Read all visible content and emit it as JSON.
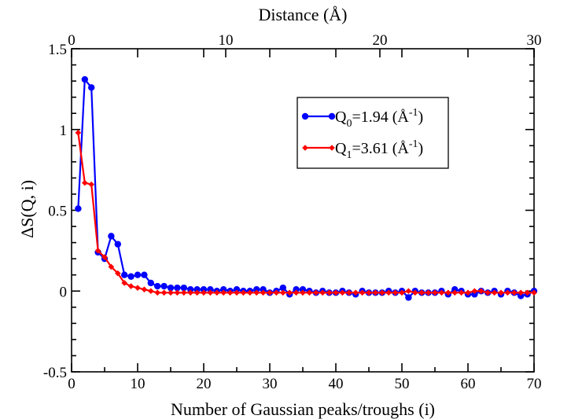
{
  "chart_data": {
    "type": "line",
    "xlabel": "Number of Gaussian peaks/troughs (i)",
    "ylabel": "ΔS(Q, i)",
    "x2label": "Distance (Å)",
    "xlim": [
      0,
      70
    ],
    "ylim": [
      -0.5,
      1.5
    ],
    "x2lim": [
      0,
      30
    ],
    "x_ticks": [
      0,
      10,
      20,
      30,
      40,
      50,
      60,
      70
    ],
    "y_ticks": [
      -0.5,
      0,
      0.5,
      1,
      1.5
    ],
    "y_tick_labels": [
      "-0.5",
      "0",
      "0.5",
      "1",
      "1.5"
    ],
    "x2_ticks": [
      0,
      10,
      20,
      30
    ],
    "grid": false,
    "legend_position": "upper-right",
    "series": [
      {
        "name": "Q0=1.94 (Å-1)",
        "legend": {
          "prefix": "Q",
          "sub": "0",
          "middle": "=1.94 (Å",
          "sup": "-1",
          "suffix": ")"
        },
        "color": "#0000ff",
        "marker": "circle",
        "x": [
          1,
          2,
          3,
          4,
          5,
          6,
          7,
          8,
          9,
          10,
          11,
          12,
          13,
          14,
          15,
          16,
          17,
          18,
          19,
          20,
          21,
          22,
          23,
          24,
          25,
          26,
          27,
          28,
          29,
          30,
          31,
          32,
          33,
          34,
          35,
          36,
          37,
          38,
          39,
          40,
          41,
          42,
          43,
          44,
          45,
          46,
          47,
          48,
          49,
          50,
          51,
          52,
          53,
          54,
          55,
          56,
          57,
          58,
          59,
          60,
          61,
          62,
          63,
          64,
          65,
          66,
          67,
          68,
          69,
          70
        ],
        "y": [
          0.51,
          1.31,
          1.26,
          0.24,
          0.2,
          0.34,
          0.29,
          0.1,
          0.09,
          0.1,
          0.1,
          0.05,
          0.03,
          0.03,
          0.02,
          0.02,
          0.02,
          0.01,
          0.01,
          0.01,
          0.01,
          0.0,
          0.01,
          0.0,
          0.01,
          0.0,
          0.0,
          0.01,
          0.01,
          -0.01,
          0.0,
          0.02,
          -0.02,
          0.01,
          0.01,
          0.0,
          -0.01,
          0.0,
          -0.01,
          -0.01,
          0.0,
          -0.01,
          -0.02,
          0.0,
          -0.01,
          -0.01,
          -0.01,
          0.0,
          -0.01,
          0.0,
          -0.04,
          0.0,
          -0.01,
          -0.01,
          -0.01,
          0.0,
          -0.02,
          0.01,
          0.0,
          -0.02,
          -0.02,
          0.0,
          -0.01,
          0.0,
          -0.02,
          0.0,
          -0.01,
          -0.03,
          -0.02,
          0.0
        ]
      },
      {
        "name": "Q1=3.61 (Å-1)",
        "legend": {
          "prefix": "Q",
          "sub": "1",
          "middle": "=3.61 (Å",
          "sup": "-1",
          "suffix": ")"
        },
        "color": "#ff0000",
        "marker": "diamond",
        "x": [
          1,
          2,
          3,
          4,
          5,
          6,
          7,
          8,
          9,
          10,
          11,
          12,
          13,
          14,
          15,
          16,
          17,
          18,
          19,
          20,
          21,
          22,
          23,
          24,
          25,
          26,
          27,
          28,
          29,
          30,
          31,
          32,
          33,
          34,
          35,
          36,
          37,
          38,
          39,
          40,
          41,
          42,
          43,
          44,
          45,
          46,
          47,
          48,
          49,
          50,
          51,
          52,
          53,
          54,
          55,
          56,
          57,
          58,
          59,
          60,
          61,
          62,
          63,
          64,
          65,
          66,
          67,
          68,
          69,
          70
        ],
        "y": [
          0.98,
          0.67,
          0.66,
          0.25,
          0.21,
          0.15,
          0.11,
          0.05,
          0.03,
          0.02,
          0.01,
          0.0,
          -0.01,
          -0.01,
          -0.01,
          -0.01,
          -0.01,
          -0.01,
          -0.01,
          -0.01,
          -0.01,
          -0.01,
          -0.01,
          -0.01,
          -0.01,
          -0.01,
          -0.01,
          -0.01,
          -0.01,
          -0.01,
          -0.01,
          -0.01,
          -0.01,
          -0.01,
          -0.01,
          -0.01,
          -0.01,
          -0.01,
          -0.01,
          -0.01,
          -0.01,
          -0.01,
          -0.01,
          -0.01,
          -0.01,
          -0.01,
          -0.01,
          -0.01,
          -0.01,
          -0.01,
          0.0,
          -0.01,
          -0.01,
          -0.01,
          -0.01,
          -0.01,
          -0.01,
          -0.01,
          -0.01,
          -0.01,
          0.0,
          0.0,
          -0.01,
          -0.01,
          -0.01,
          -0.01,
          -0.01,
          -0.01,
          -0.01,
          -0.01
        ]
      }
    ]
  }
}
